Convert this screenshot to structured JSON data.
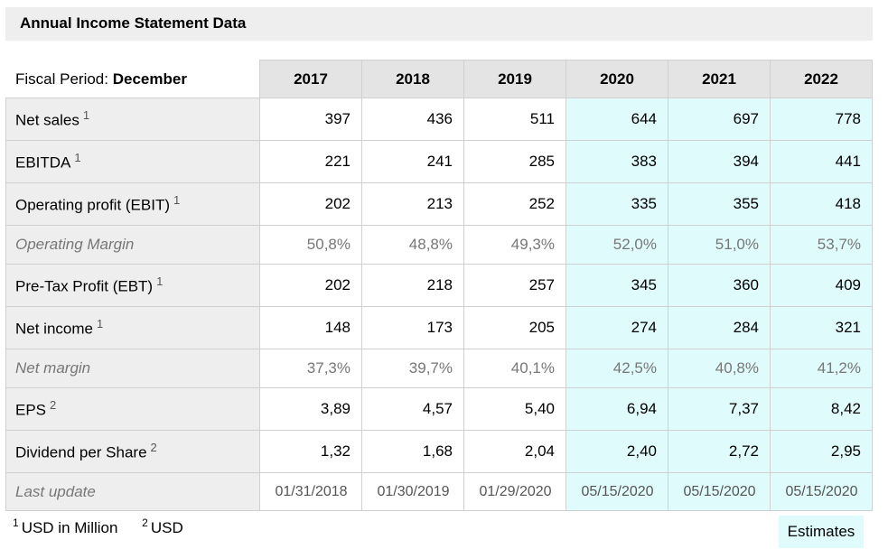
{
  "title": "Annual Income Statement Data",
  "fiscal_period_label": "Fiscal Period:",
  "fiscal_period_value": "December",
  "years": [
    "2017",
    "2018",
    "2019",
    "2020",
    "2021",
    "2022"
  ],
  "estimate_columns_from": "2020",
  "rows": [
    {
      "label": "Net sales",
      "note": "1",
      "values": [
        "397",
        "436",
        "511",
        "644",
        "697",
        "778"
      ]
    },
    {
      "label": "EBITDA",
      "note": "1",
      "values": [
        "221",
        "241",
        "285",
        "383",
        "394",
        "441"
      ]
    },
    {
      "label": "Operating profit (EBIT)",
      "note": "1",
      "values": [
        "202",
        "213",
        "252",
        "335",
        "355",
        "418"
      ]
    },
    {
      "label": "Operating Margin",
      "note": "",
      "values": [
        "50,8%",
        "48,8%",
        "49,3%",
        "52,0%",
        "51,0%",
        "53,7%"
      ]
    },
    {
      "label": "Pre-Tax Profit (EBT)",
      "note": "1",
      "values": [
        "202",
        "218",
        "257",
        "345",
        "360",
        "409"
      ]
    },
    {
      "label": "Net income",
      "note": "1",
      "values": [
        "148",
        "173",
        "205",
        "274",
        "284",
        "321"
      ]
    },
    {
      "label": "Net margin",
      "note": "",
      "values": [
        "37,3%",
        "39,7%",
        "40,1%",
        "42,5%",
        "40,8%",
        "41,2%"
      ]
    },
    {
      "label": "EPS",
      "note": "2",
      "values": [
        "3,89",
        "4,57",
        "5,40",
        "6,94",
        "7,37",
        "8,42"
      ]
    },
    {
      "label": "Dividend per Share",
      "note": "2",
      "values": [
        "1,32",
        "1,68",
        "2,04",
        "2,40",
        "2,72",
        "2,95"
      ]
    },
    {
      "label": "Last update",
      "note": "",
      "values": [
        "01/31/2018",
        "01/30/2019",
        "01/29/2020",
        "05/15/2020",
        "05/15/2020",
        "05/15/2020"
      ]
    }
  ],
  "footnotes": [
    {
      "mark": "1",
      "text": "USD in Million"
    },
    {
      "mark": "2",
      "text": "USD"
    }
  ],
  "estimates_label": "Estimates",
  "colors": {
    "estimate_bg": "#e0fbfb",
    "label_bg": "#eeeeee",
    "header_bg": "#e4e4e4"
  }
}
